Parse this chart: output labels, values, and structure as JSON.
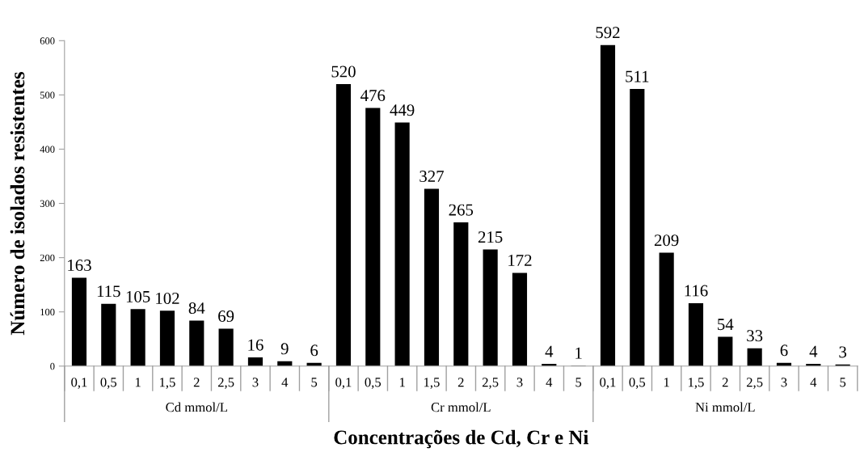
{
  "chart_data": {
    "type": "bar",
    "xlabel": "Concentrações de Cd, Cr e Ni",
    "ylabel": "Número de isolados resistentes",
    "categories": [
      "0,1",
      "0,5",
      "1",
      "1,5",
      "2",
      "2,5",
      "3",
      "4",
      "5",
      "0,1",
      "0,5",
      "1",
      "1,5",
      "2",
      "2,5",
      "3",
      "4",
      "5",
      "0,1",
      "0,5",
      "1",
      "1,5",
      "2",
      "2,5",
      "3",
      "4",
      "5"
    ],
    "values": [
      163,
      115,
      105,
      102,
      84,
      69,
      16,
      9,
      6,
      520,
      476,
      449,
      327,
      265,
      215,
      172,
      4,
      1,
      592,
      511,
      209,
      116,
      54,
      33,
      6,
      4,
      3
    ],
    "color": "#000000",
    "annotations": [
      "Cd mmol/L",
      "Cr mmol/L",
      "Ni mmol/L"
    ],
    "ylim": [
      0,
      600
    ],
    "yticks": [
      0,
      100,
      200,
      300,
      400,
      500,
      600
    ],
    "data_labels": true,
    "grid": false,
    "legend": false
  }
}
